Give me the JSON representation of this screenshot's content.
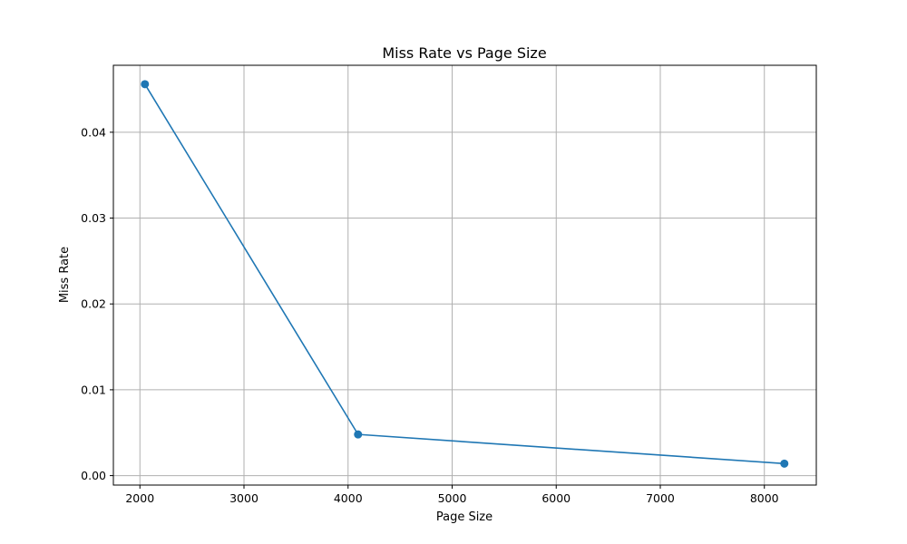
{
  "chart_data": {
    "type": "line",
    "title": "Miss Rate vs Page Size",
    "xlabel": "Page Size",
    "ylabel": "Miss Rate",
    "xlim": [
      1745,
      8499
    ],
    "ylim": [
      -0.0011,
      0.0478
    ],
    "xticks": [
      2000,
      3000,
      4000,
      5000,
      6000,
      7000,
      8000
    ],
    "xtick_labels": [
      "2000",
      "3000",
      "4000",
      "5000",
      "6000",
      "7000",
      "8000"
    ],
    "yticks": [
      0.0,
      0.01,
      0.02,
      0.03,
      0.04
    ],
    "ytick_labels": [
      "0.00",
      "0.01",
      "0.02",
      "0.03",
      "0.04"
    ],
    "grid": true,
    "series": [
      {
        "color": "#1f77b4",
        "marker": "circle",
        "x": [
          2048,
          4096,
          8192
        ],
        "y": [
          0.0456,
          0.0048,
          0.0014
        ]
      }
    ]
  }
}
